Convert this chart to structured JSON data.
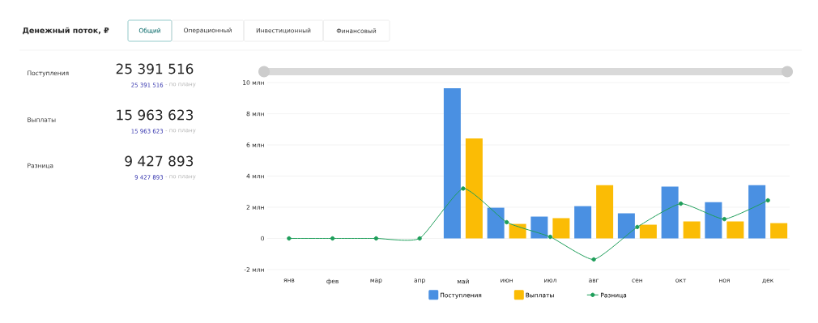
{
  "chart_data": [
    {
      "type": "other",
      "title": "Денежный поток, ₽",
      "annotations": [
        "Общий",
        "Операционный",
        "Инвестиционный",
        "Финансовый",
        "25 391 516",
        "25 391 516",
        "- по плану",
        "15 963 623",
        "15 963 623",
        "- по плану",
        "9 427 893",
        "9 427 893",
        "- по плану"
      ],
      "categories": [
        "Поступления",
        "Выплаты",
        "Разница"
      ]
    },
    {
      "type": "bar",
      "categories": [
        "янв",
        "фев",
        "мар",
        "апр",
        "май",
        "июн",
        "июл",
        "авг",
        "сен",
        "окт",
        "ноя",
        "дек"
      ],
      "series": [
        {
          "name": "Поступления",
          "color": "#4a90e2",
          "values": [
            0,
            0,
            0,
            0,
            9.64,
            1.97,
            1.4,
            2.07,
            1.61,
            3.32,
            2.33,
            3.42
          ]
        },
        {
          "name": "Выплаты",
          "color": "#fbbc05",
          "values": [
            0,
            0,
            0,
            0,
            6.42,
            0.93,
            1.3,
            3.42,
            0.88,
            1.09,
            1.09,
            0.98
          ]
        },
        {
          "name": "Разница",
          "type": "line",
          "color": "#1e9e5a",
          "values": [
            0,
            0,
            0,
            0,
            3.2,
            1.04,
            0.1,
            -1.35,
            0.73,
            2.23,
            1.24,
            2.44
          ]
        }
      ],
      "ylim": [
        -2,
        10
      ],
      "yticks": [
        {
          "value": -2,
          "label": "-2 млн"
        },
        0,
        {
          "value": 2,
          "label": "2 млн"
        },
        {
          "value": 4,
          "label": "4 млн"
        },
        {
          "value": 6,
          "label": "6 млн"
        },
        {
          "value": 8,
          "label": "8 млн"
        },
        {
          "value": 10,
          "label": "10 млн"
        }
      ],
      "grid": "y",
      "legend": "bottom",
      "marker": "circle"
    }
  ]
}
